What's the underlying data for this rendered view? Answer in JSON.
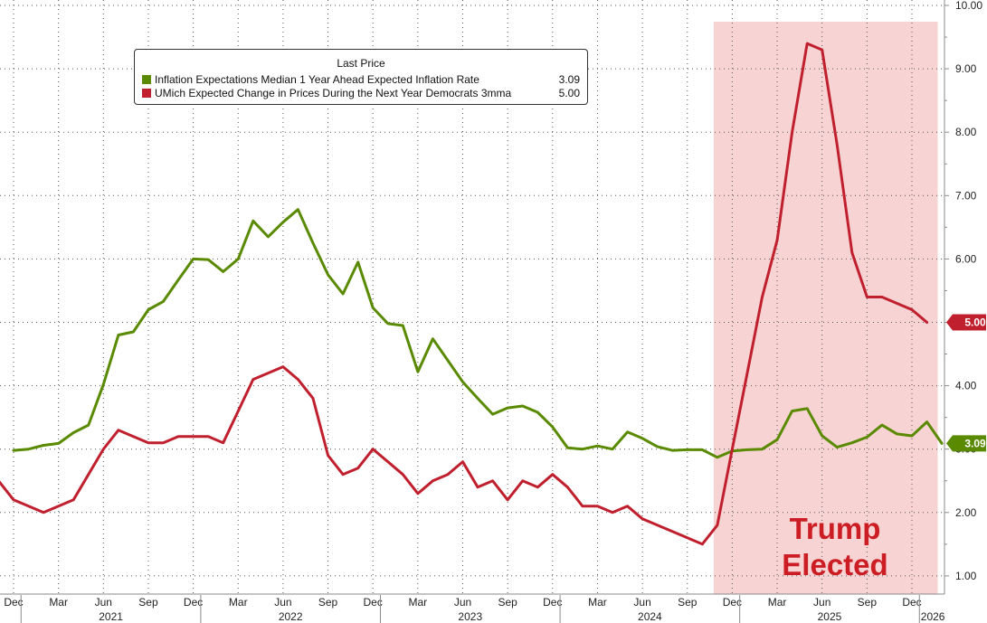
{
  "chart_data": {
    "type": "line",
    "y_axis_position": "right",
    "ylim": [
      0.8,
      10.1
    ],
    "y_ticks": [
      "1.00",
      "2.00",
      "3.00",
      "4.00",
      "5.00",
      "6.00",
      "7.00",
      "8.00",
      "9.00",
      "10.00"
    ],
    "x_month_ticks": [
      "Dec",
      "Mar",
      "Jun",
      "Sep",
      "Dec",
      "Mar",
      "Jun",
      "Sep",
      "Dec",
      "Mar",
      "Jun",
      "Sep",
      "Dec",
      "Mar",
      "Jun",
      "Sep",
      "Dec",
      "Mar",
      "Jun",
      "Sep",
      "Dec"
    ],
    "x_year_labels": [
      "2021",
      "2022",
      "2023",
      "2024",
      "2025",
      "2026"
    ],
    "grid": true,
    "legend": {
      "title": "Last Price",
      "position": "top-left",
      "entries": [
        {
          "name": "Inflation Expectations Median 1 Year Ahead Expected Inflation Rate",
          "value": "3.09",
          "color": "#5a8a00"
        },
        {
          "name": "UMich Expected Change in Prices During the Next Year Democrats 3mma",
          "value": "5.00",
          "color": "#c0202e"
        }
      ]
    },
    "last_value_badges": [
      {
        "text": "5.00",
        "color": "#c0202e"
      },
      {
        "text": "3.09",
        "color": "#5a8a00"
      }
    ],
    "highlight": {
      "start": "2024-11",
      "end": "2026-01",
      "color": "#f8d3d3",
      "label_line1": "Trump",
      "label_line2": "Elected"
    },
    "series": [
      {
        "name": "Inflation Expectations Median 1 Year Ahead Expected Inflation Rate",
        "color": "#5a8a00",
        "points": [
          [
            "2020-12",
            2.98
          ],
          [
            "2021-01",
            3.0
          ],
          [
            "2021-02",
            3.06
          ],
          [
            "2021-03",
            3.09
          ],
          [
            "2021-04",
            3.26
          ],
          [
            "2021-05",
            3.38
          ],
          [
            "2021-06",
            4.02
          ],
          [
            "2021-07",
            4.8
          ],
          [
            "2021-08",
            4.85
          ],
          [
            "2021-09",
            5.2
          ],
          [
            "2021-10",
            5.33
          ],
          [
            "2021-11",
            5.67
          ],
          [
            "2021-12",
            6.0
          ],
          [
            "2022-01",
            5.99
          ],
          [
            "2022-02",
            5.8
          ],
          [
            "2022-03",
            6.0
          ],
          [
            "2022-04",
            6.6
          ],
          [
            "2022-05",
            6.35
          ],
          [
            "2022-06",
            6.58
          ],
          [
            "2022-07",
            6.78
          ],
          [
            "2022-08",
            6.25
          ],
          [
            "2022-09",
            5.75
          ],
          [
            "2022-10",
            5.45
          ],
          [
            "2022-11",
            5.95
          ],
          [
            "2022-12",
            5.23
          ],
          [
            "2023-01",
            4.98
          ],
          [
            "2023-02",
            4.95
          ],
          [
            "2023-03",
            4.22
          ],
          [
            "2023-04",
            4.74
          ],
          [
            "2023-05",
            4.4
          ],
          [
            "2023-06",
            4.06
          ],
          [
            "2023-07",
            3.8
          ],
          [
            "2023-08",
            3.55
          ],
          [
            "2023-09",
            3.65
          ],
          [
            "2023-10",
            3.68
          ],
          [
            "2023-11",
            3.58
          ],
          [
            "2023-12",
            3.35
          ],
          [
            "2024-01",
            3.02
          ],
          [
            "2024-02",
            3.0
          ],
          [
            "2024-03",
            3.05
          ],
          [
            "2024-04",
            3.0
          ],
          [
            "2024-05",
            3.27
          ],
          [
            "2024-06",
            3.17
          ],
          [
            "2024-07",
            3.04
          ],
          [
            "2024-08",
            2.98
          ],
          [
            "2024-09",
            2.99
          ],
          [
            "2024-10",
            2.99
          ],
          [
            "2024-11",
            2.87
          ],
          [
            "2024-12",
            2.97
          ],
          [
            "2025-01",
            2.99
          ],
          [
            "2025-02",
            3.0
          ],
          [
            "2025-03",
            3.15
          ],
          [
            "2025-04",
            3.6
          ],
          [
            "2025-05",
            3.64
          ],
          [
            "2025-06",
            3.21
          ],
          [
            "2025-07",
            3.03
          ],
          [
            "2025-08",
            3.1
          ],
          [
            "2025-09",
            3.19
          ],
          [
            "2025-10",
            3.38
          ],
          [
            "2025-11",
            3.24
          ],
          [
            "2025-12",
            3.21
          ],
          [
            "2026-01",
            3.43
          ],
          [
            "2026-02",
            3.09
          ]
        ]
      },
      {
        "name": "UMich Expected Change in Prices During the Next Year Democrats 3mma",
        "color": "#c0202e",
        "points": [
          [
            "2020-11",
            2.5
          ],
          [
            "2020-12",
            2.2
          ],
          [
            "2021-01",
            2.1
          ],
          [
            "2021-02",
            2.0
          ],
          [
            "2021-03",
            2.1
          ],
          [
            "2021-04",
            2.2
          ],
          [
            "2021-05",
            2.6
          ],
          [
            "2021-06",
            3.0
          ],
          [
            "2021-07",
            3.3
          ],
          [
            "2021-08",
            3.2
          ],
          [
            "2021-09",
            3.1
          ],
          [
            "2021-10",
            3.1
          ],
          [
            "2021-11",
            3.2
          ],
          [
            "2021-12",
            3.2
          ],
          [
            "2022-01",
            3.2
          ],
          [
            "2022-02",
            3.1
          ],
          [
            "2022-03",
            3.6
          ],
          [
            "2022-04",
            4.1
          ],
          [
            "2022-05",
            4.2
          ],
          [
            "2022-06",
            4.3
          ],
          [
            "2022-07",
            4.1
          ],
          [
            "2022-08",
            3.8
          ],
          [
            "2022-09",
            2.9
          ],
          [
            "2022-10",
            2.6
          ],
          [
            "2022-11",
            2.7
          ],
          [
            "2022-12",
            3.0
          ],
          [
            "2023-01",
            2.8
          ],
          [
            "2023-02",
            2.6
          ],
          [
            "2023-03",
            2.3
          ],
          [
            "2023-04",
            2.5
          ],
          [
            "2023-05",
            2.6
          ],
          [
            "2023-06",
            2.8
          ],
          [
            "2023-07",
            2.4
          ],
          [
            "2023-08",
            2.5
          ],
          [
            "2023-09",
            2.2
          ],
          [
            "2023-10",
            2.5
          ],
          [
            "2023-11",
            2.4
          ],
          [
            "2023-12",
            2.6
          ],
          [
            "2024-01",
            2.4
          ],
          [
            "2024-02",
            2.1
          ],
          [
            "2024-03",
            2.1
          ],
          [
            "2024-04",
            2.0
          ],
          [
            "2024-05",
            2.1
          ],
          [
            "2024-06",
            1.9
          ],
          [
            "2024-07",
            1.8
          ],
          [
            "2024-08",
            1.7
          ],
          [
            "2024-09",
            1.6
          ],
          [
            "2024-10",
            1.5
          ],
          [
            "2024-11",
            1.8
          ],
          [
            "2024-12",
            3.0
          ],
          [
            "2025-01",
            4.2
          ],
          [
            "2025-02",
            5.4
          ],
          [
            "2025-03",
            6.3
          ],
          [
            "2025-04",
            8.0
          ],
          [
            "2025-05",
            9.4
          ],
          [
            "2025-06",
            9.3
          ],
          [
            "2025-07",
            7.8
          ],
          [
            "2025-08",
            6.1
          ],
          [
            "2025-09",
            5.4
          ],
          [
            "2025-10",
            5.4
          ],
          [
            "2025-11",
            5.3
          ],
          [
            "2025-12",
            5.2
          ],
          [
            "2026-01",
            5.0
          ]
        ]
      }
    ]
  }
}
